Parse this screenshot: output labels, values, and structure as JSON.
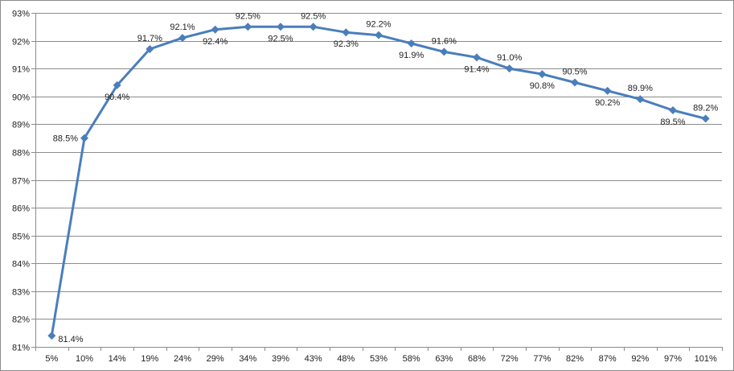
{
  "chart_data": {
    "type": "line",
    "title": "",
    "xlabel": "",
    "ylabel": "",
    "categories": [
      "5%",
      "10%",
      "14%",
      "19%",
      "24%",
      "29%",
      "34%",
      "39%",
      "43%",
      "48%",
      "53%",
      "58%",
      "63%",
      "68%",
      "72%",
      "77%",
      "82%",
      "87%",
      "92%",
      "97%",
      "101%"
    ],
    "series": [
      {
        "values": [
          81.4,
          88.5,
          90.4,
          91.7,
          92.1,
          92.4,
          92.5,
          92.5,
          92.5,
          92.3,
          92.2,
          91.9,
          91.6,
          91.4,
          91.0,
          90.8,
          90.5,
          90.2,
          89.9,
          89.5,
          89.2
        ],
        "labels": [
          "81.4%",
          "88.5%",
          "90.4%",
          "91.7%",
          "92.1%",
          "92.4%",
          "92.5%",
          "92.5%",
          "92.5%",
          "92.3%",
          "92.2%",
          "91.9%",
          "91.6%",
          "91.4%",
          "91.0%",
          "90.8%",
          "90.5%",
          "90.2%",
          "89.9%",
          "89.5%",
          "89.2%"
        ],
        "label_placement": [
          "right",
          "left",
          "below",
          "above",
          "above",
          "below",
          "above",
          "below",
          "above",
          "below",
          "above",
          "below",
          "above",
          "below",
          "above",
          "below",
          "above",
          "below",
          "above",
          "below",
          "above"
        ],
        "color": "#4a7ebb",
        "marker": "diamond"
      }
    ],
    "ylim": [
      81,
      93
    ],
    "y_ticks": [
      "81%",
      "82%",
      "83%",
      "84%",
      "85%",
      "86%",
      "87%",
      "88%",
      "89%",
      "90%",
      "91%",
      "92%",
      "93%"
    ],
    "grid": true,
    "grid_color": "#8c8c8c",
    "legend": "none"
  }
}
